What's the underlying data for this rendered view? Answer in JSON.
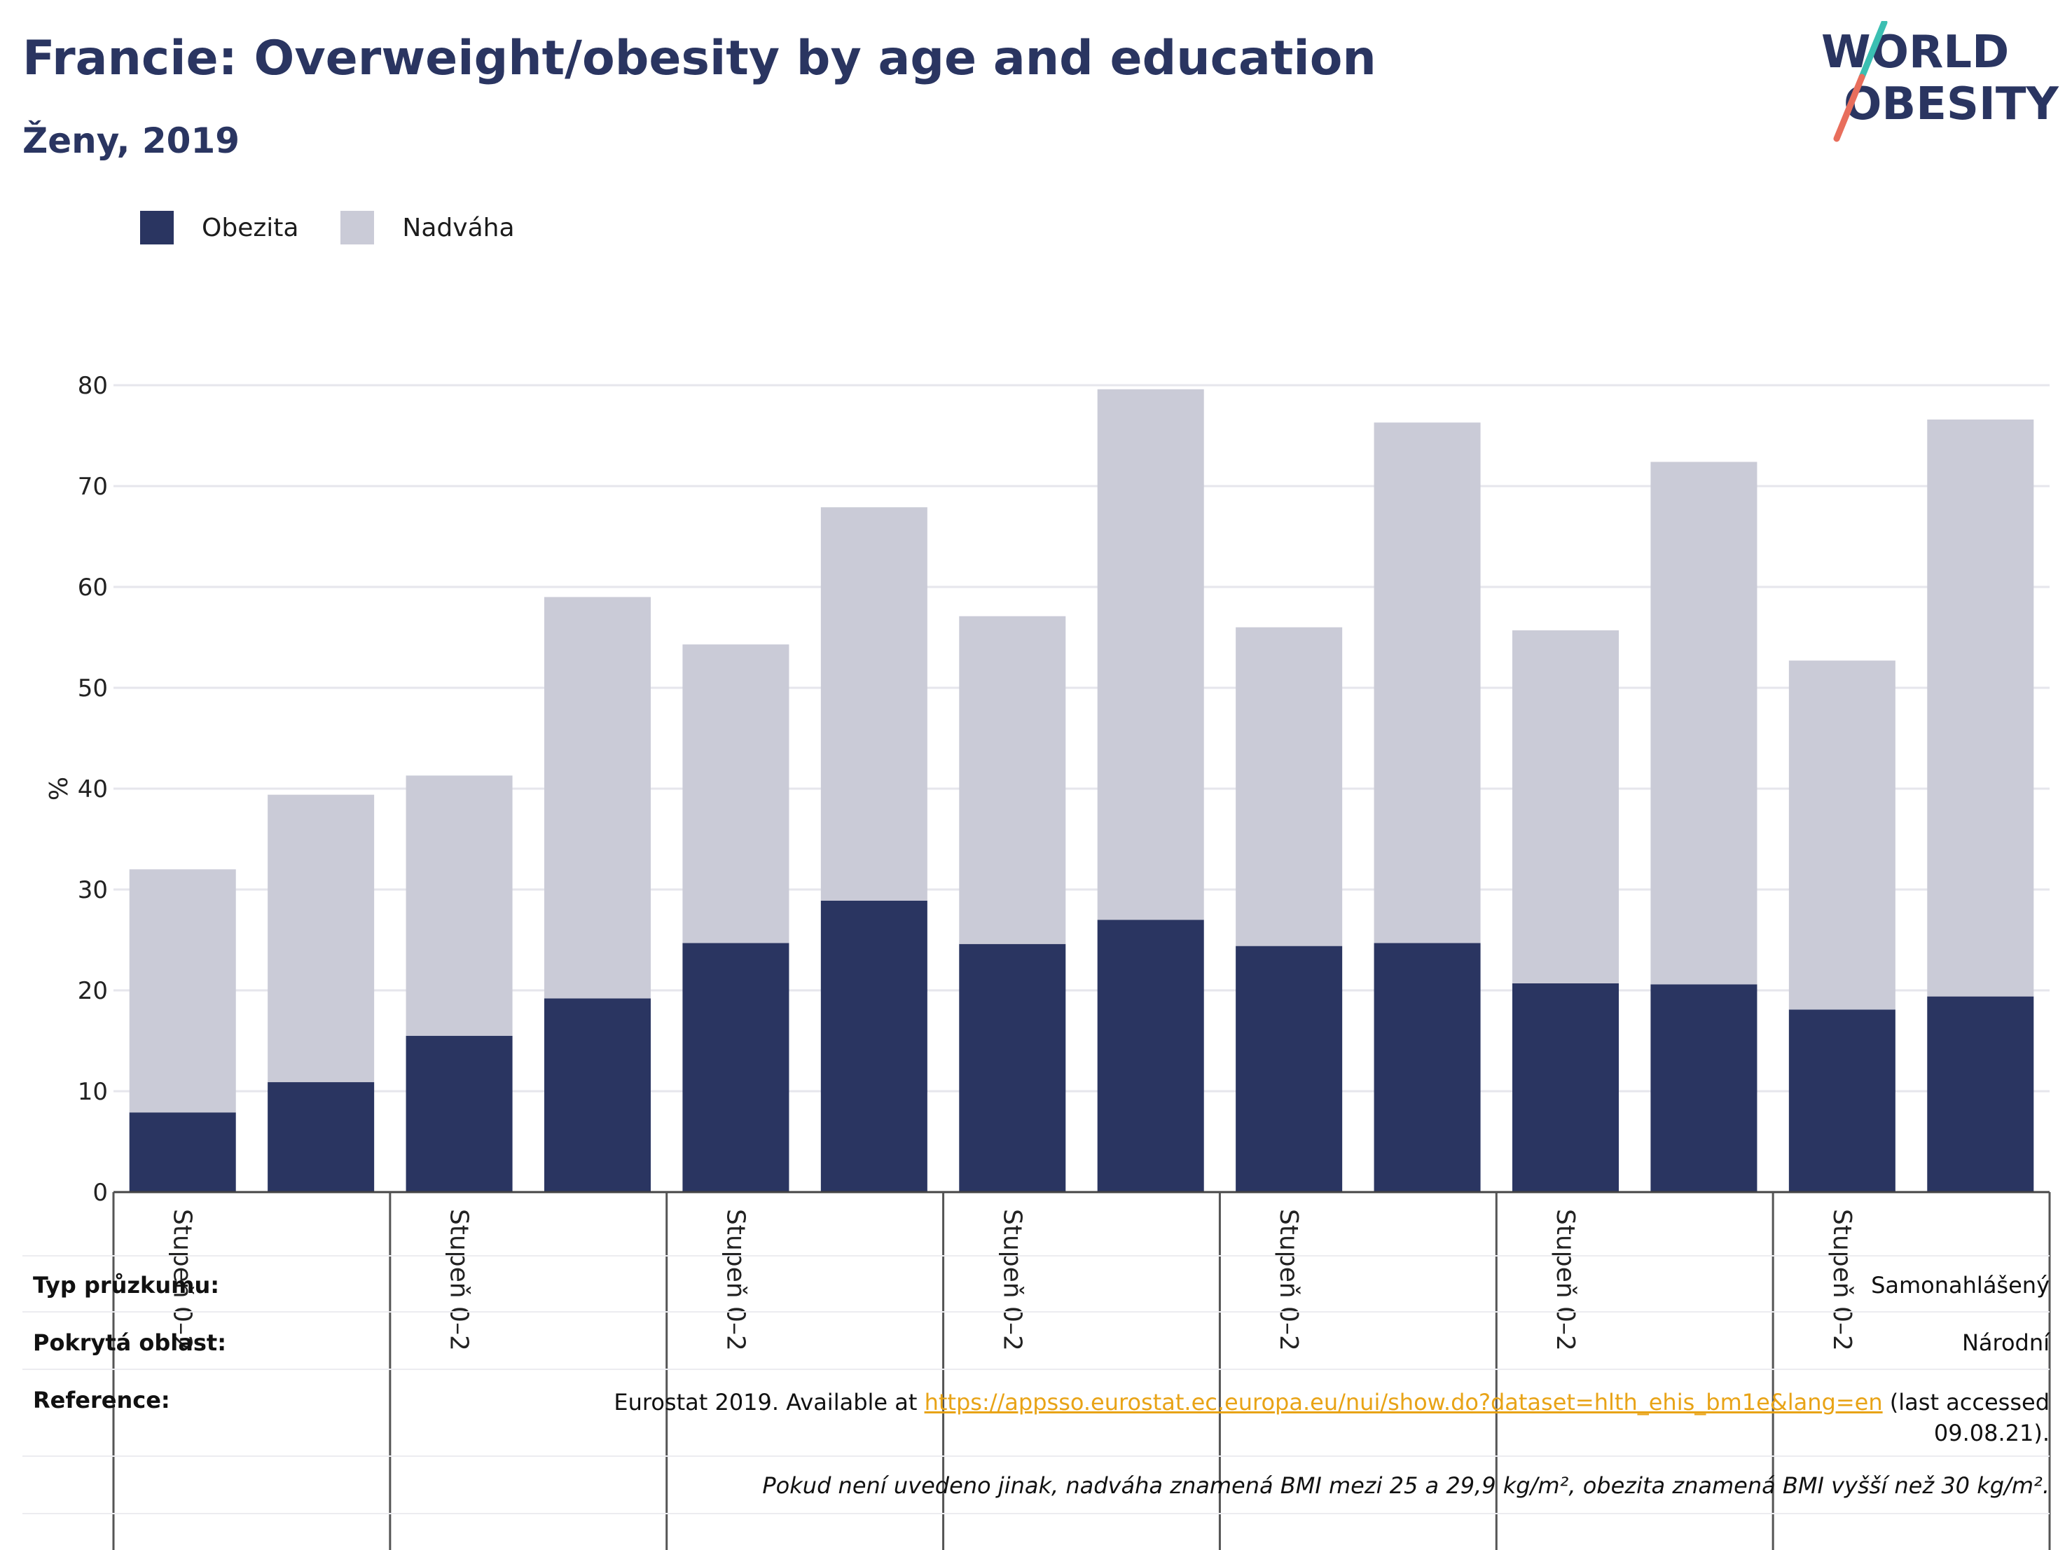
{
  "header": {
    "title": "Francie: Overweight/obesity by age and education",
    "subtitle": "Ženy, 2019"
  },
  "logo": {
    "line1": "WORLD",
    "line2": "OBESITY"
  },
  "legend": [
    {
      "label": "Obezita",
      "color": "#2a3561"
    },
    {
      "label": "Nadváha",
      "color": "#cacbd7"
    }
  ],
  "chart_data": {
    "type": "bar",
    "stacked": true,
    "ylabel": "%",
    "ylim": [
      0,
      80
    ],
    "yticks": [
      0,
      10,
      20,
      30,
      40,
      50,
      60,
      70,
      80
    ],
    "group_labels": [
      "Stupeň 0–2",
      "Stupeň 0–2",
      "Stupeň 0–2",
      "Stupeň 0–2",
      "Stupeň 0–2",
      "Stupeň 0–2",
      "Stupeň 0–2"
    ],
    "bars_per_group": 2,
    "grid": true,
    "legend_position": "top-left",
    "series": [
      {
        "name": "Obezita",
        "color": "#2a3561",
        "values": [
          7.9,
          10.9,
          15.5,
          19.2,
          24.7,
          28.9,
          24.6,
          27.0,
          24.4,
          24.7,
          20.7,
          20.6,
          18.1,
          19.4
        ]
      },
      {
        "name": "Nadváha",
        "color": "#cacbd7",
        "values": [
          24.1,
          28.5,
          25.8,
          39.8,
          29.6,
          39.0,
          32.5,
          52.6,
          31.6,
          51.6,
          35.0,
          51.8,
          34.6,
          57.2
        ]
      }
    ]
  },
  "info": {
    "survey_type_label": "Typ průzkumu:",
    "survey_type_value": "Samonahlášený",
    "area_label": "Pokrytá oblast:",
    "area_value": "Národní",
    "reference_label": "Reference:",
    "reference_prefix": "Eurostat 2019. Available at ",
    "reference_link": "https://appsso.eurostat.ec.europa.eu/nui/show.do?dataset=hlth_ehis_bm1e&lang=en",
    "reference_suffix": " (last accessed",
    "reference_date": "09.08.21).",
    "note": "Pokud není uvedeno jinak, nadváha znamená BMI mezi 25 a 29,9 kg/m², obezita znamená BMI vyšší než 30 kg/m²."
  }
}
